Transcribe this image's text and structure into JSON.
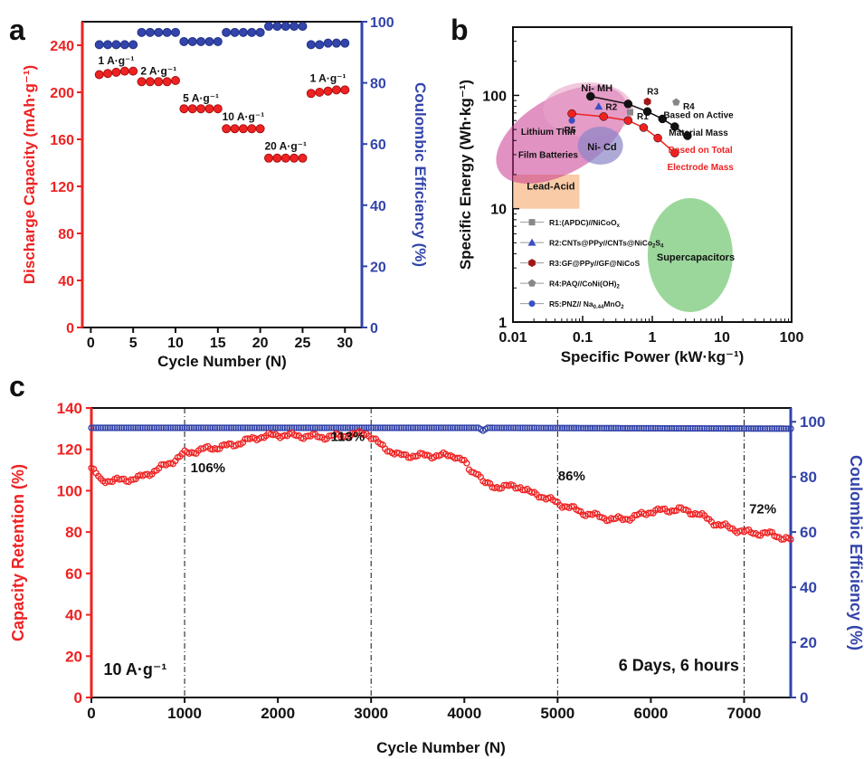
{
  "colors": {
    "red": "#ee2222",
    "blue": "#3344aa",
    "black": "#111111",
    "gray": "#888888",
    "panel_b_blue": "#3b4fc4",
    "panel_b_darkred": "#a01818"
  },
  "chart_data": [
    {
      "panel": "a",
      "type": "scatter",
      "xlabel": "Cycle Number (N)",
      "ylabel_left": "Discharge Capacity (mAh·g⁻¹)",
      "ylabel_right": "Coulombic Efficiency (%)",
      "xlim": [
        -1,
        32
      ],
      "ylim_left": [
        0,
        260
      ],
      "ylim_right": [
        0,
        100
      ],
      "xticks": [
        0,
        5,
        10,
        15,
        20,
        25,
        30
      ],
      "yticks_left": [
        0,
        40,
        80,
        120,
        160,
        200,
        240
      ],
      "yticks_right": [
        0,
        20,
        40,
        60,
        80,
        100
      ],
      "series": [
        {
          "axis": "left",
          "x": [
            1,
            2,
            3,
            4,
            5,
            6,
            7,
            8,
            9,
            10,
            11,
            12,
            13,
            14,
            15,
            16,
            17,
            18,
            19,
            20,
            21,
            22,
            23,
            24,
            25,
            26,
            27,
            28,
            29,
            30
          ],
          "values": [
            215,
            216,
            217,
            218,
            218,
            209,
            209,
            209,
            209,
            210,
            186,
            186,
            186,
            186,
            186,
            169,
            169,
            169,
            169,
            169,
            144,
            144,
            144,
            144,
            144,
            199,
            200,
            201,
            202,
            202
          ]
        },
        {
          "axis": "right",
          "x": [
            1,
            2,
            3,
            4,
            5,
            6,
            7,
            8,
            9,
            10,
            11,
            12,
            13,
            14,
            15,
            16,
            17,
            18,
            19,
            20,
            21,
            22,
            23,
            24,
            25,
            26,
            27,
            28,
            29,
            30
          ],
          "values": [
            92.5,
            92.5,
            92.5,
            92.5,
            92.5,
            96.5,
            96.5,
            96.5,
            96.5,
            96.5,
            93.5,
            93.5,
            93.5,
            93.5,
            93.5,
            96.5,
            96.5,
            96.5,
            96.5,
            96.5,
            98.5,
            98.5,
            98.5,
            98.5,
            98.5,
            92.5,
            92.5,
            93,
            93,
            93
          ]
        }
      ],
      "annotations": [
        {
          "text": "1 A·g⁻¹",
          "x": 3,
          "y": 224
        },
        {
          "text": "2 A·g⁻¹",
          "x": 8,
          "y": 215
        },
        {
          "text": "5 A·g⁻¹",
          "x": 13,
          "y": 192
        },
        {
          "text": "10 A·g⁻¹",
          "x": 18,
          "y": 176
        },
        {
          "text": "20 A·g⁻¹",
          "x": 23,
          "y": 151
        },
        {
          "text": "1 A·g⁻¹",
          "x": 28,
          "y": 209
        }
      ]
    },
    {
      "panel": "b",
      "type": "scatter",
      "xscale": "log",
      "yscale": "log",
      "xlabel": "Specific Power (kW·kg⁻¹)",
      "ylabel": "Specific Energy (Wh·kg⁻¹)",
      "xlim": [
        0.01,
        100
      ],
      "ylim": [
        1,
        400
      ],
      "xticks": [
        "0.01",
        "0.1",
        "1",
        "10",
        "100"
      ],
      "yticks": [
        "1",
        "10",
        "100"
      ],
      "regions": [
        {
          "label": "Lead-Acid",
          "kind": "rect",
          "color": "#f7b98a"
        },
        {
          "label": "Lithium Thin Film Batteries",
          "kind": "ellipse",
          "color": "#c8388f"
        },
        {
          "label": "Ni- MH",
          "kind": "ellipse",
          "color": "#e8a4c8"
        },
        {
          "label": "Ni- Cd",
          "kind": "ellipse",
          "color": "#8a86c8"
        },
        {
          "label": "Supercapacitors",
          "kind": "ellipse",
          "color": "#66c266"
        }
      ],
      "series": [
        {
          "label": "Based on Active Material Mass",
          "color": "#111111",
          "x": [
            0.13,
            0.45,
            0.85,
            1.4,
            2.1,
            3.2
          ],
          "values": [
            98,
            84,
            72,
            62,
            53,
            44
          ]
        },
        {
          "label": "Based on Total Electrode Mass",
          "color": "#ee2222",
          "x": [
            0.07,
            0.2,
            0.45,
            0.75,
            1.2,
            2.1
          ],
          "values": [
            69,
            65,
            60,
            52,
            42,
            31
          ]
        }
      ],
      "literature_points": [
        {
          "label": "R1",
          "legend": "R1:(APDC)//NiCoO",
          "sub": "x",
          "tail": "",
          "marker": "square",
          "color": "#888888",
          "x": 0.48,
          "y": 71
        },
        {
          "label": "R2",
          "legend": "R2:CNTs@PPy//CNTs@NiCo",
          "sub": "2",
          "tail": "S",
          "sub2": "4",
          "marker": "triangle",
          "color": "#3b4fc4",
          "x": 0.17,
          "y": 80
        },
        {
          "label": "R3",
          "legend": "R3:GF@PPy//GF@NiCoS",
          "sub": "",
          "tail": "",
          "marker": "hexagon",
          "color": "#a01818",
          "x": 0.85,
          "y": 88
        },
        {
          "label": "R4",
          "legend": "R4:PAQ//CoNi(OH)",
          "sub": "2",
          "tail": "",
          "marker": "pentagon",
          "color": "#888888",
          "x": 2.2,
          "y": 87
        },
        {
          "label": "R5",
          "legend": "R5:PNZ// Na",
          "sub": "0.44",
          "tail": "MnO",
          "sub2": "2",
          "marker": "circle",
          "color": "#3b4fc4",
          "x": 0.07,
          "y": 60
        }
      ]
    },
    {
      "panel": "c",
      "type": "line",
      "xlabel": "Cycle Number (N)",
      "ylabel_left": "Capacity Retention (%)",
      "ylabel_right": "Coulombic Efficiency (%)",
      "xlim": [
        0,
        7500
      ],
      "ylim_left": [
        0,
        140
      ],
      "ylim_right": [
        0,
        105
      ],
      "xticks": [
        0,
        1000,
        2000,
        3000,
        4000,
        5000,
        6000,
        7000
      ],
      "yticks_left": [
        0,
        20,
        40,
        60,
        80,
        100,
        120,
        140
      ],
      "yticks_right": [
        0,
        20,
        40,
        60,
        80,
        100
      ],
      "vlines": [
        1000,
        3000,
        5000,
        7000
      ],
      "series": [
        {
          "axis": "left",
          "x": [
            0,
            100,
            300,
            500,
            700,
            900,
            1000,
            1200,
            1500,
            1800,
            2000,
            2500,
            2800,
            2950,
            3100,
            3300,
            3600,
            3900,
            4000,
            4050,
            4100,
            4150,
            4200,
            4300,
            4600,
            4700,
            4800,
            5000,
            5300,
            5600,
            5800,
            6000,
            6300,
            6500,
            6700,
            7000,
            7300,
            7500
          ],
          "values": [
            111,
            105,
            105,
            106,
            110,
            115,
            118,
            120,
            122,
            126,
            127,
            126,
            127,
            128,
            122,
            117,
            117,
            117,
            114,
            110,
            109,
            109,
            104,
            102,
            102,
            99,
            98,
            94,
            89,
            86,
            87,
            90,
            91,
            89,
            84,
            80,
            79,
            76
          ]
        },
        {
          "axis": "right",
          "x": [
            0,
            4150,
            4200,
            4250,
            7500
          ],
          "values": [
            97.8,
            97.8,
            96.8,
            97.8,
            97.5
          ]
        }
      ],
      "annotations": [
        {
          "text": "106%",
          "x": 1250,
          "y": 109
        },
        {
          "text": "113%",
          "x": 2750,
          "y": 124
        },
        {
          "text": "86%",
          "x": 5150,
          "y": 105
        },
        {
          "text": "72%",
          "x": 7200,
          "y": 89
        },
        {
          "text": "10 A·g⁻¹",
          "x": 470,
          "y": 11
        },
        {
          "text": "6 Days, 6 hours",
          "x": 6300,
          "y": 13
        }
      ]
    }
  ],
  "panel_letters": [
    "a",
    "b",
    "c"
  ]
}
